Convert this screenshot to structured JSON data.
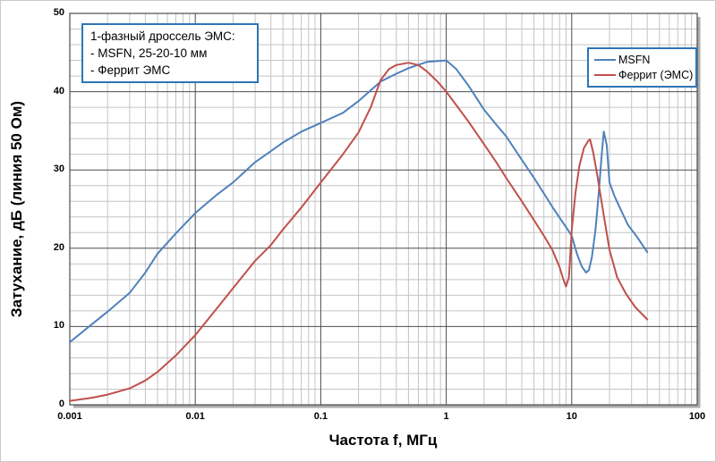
{
  "colors": {
    "accent_box_border": "#2e75b6",
    "major_grid": "#4d4d4d",
    "minor_grid": "#c4c4c4",
    "plot_border": "#4d4d4d",
    "plot_shadow": "#ababab",
    "text": "#000000"
  },
  "chart_data": {
    "type": "line",
    "title": "",
    "xlabel": "Частота f, МГц",
    "ylabel": "Затухание, дБ (линия 50 Ом)",
    "x_scale": "log",
    "xlim": [
      0.001,
      100
    ],
    "ylim": [
      0,
      50
    ],
    "y_minor_step": 2,
    "grid": true,
    "legend_position": "inside-top-right",
    "x_ticks": [
      {
        "value": 0.001,
        "label": "0.001"
      },
      {
        "value": 0.01,
        "label": "0.01"
      },
      {
        "value": 0.1,
        "label": "0.1"
      },
      {
        "value": 1,
        "label": "1"
      },
      {
        "value": 10,
        "label": "10"
      },
      {
        "value": 100,
        "label": "100"
      }
    ],
    "y_ticks": [
      0,
      10,
      20,
      30,
      40,
      50
    ],
    "annotation": {
      "lines": [
        "1-фазный дроссель ЭМС:",
        "- MSFN, 25-20-10 мм",
        "- Феррит ЭМС"
      ]
    },
    "series": [
      {
        "name": "MSFN",
        "color": "#4f81bd",
        "points": [
          [
            0.001,
            8.0
          ],
          [
            0.0015,
            10.3
          ],
          [
            0.002,
            11.9
          ],
          [
            0.003,
            14.3
          ],
          [
            0.004,
            16.9
          ],
          [
            0.005,
            19.3
          ],
          [
            0.007,
            21.9
          ],
          [
            0.01,
            24.5
          ],
          [
            0.015,
            26.9
          ],
          [
            0.02,
            28.4
          ],
          [
            0.03,
            31.0
          ],
          [
            0.04,
            32.4
          ],
          [
            0.05,
            33.5
          ],
          [
            0.07,
            34.9
          ],
          [
            0.1,
            36.0
          ],
          [
            0.15,
            37.3
          ],
          [
            0.2,
            38.8
          ],
          [
            0.3,
            41.3
          ],
          [
            0.4,
            42.3
          ],
          [
            0.5,
            43.0
          ],
          [
            0.7,
            43.8
          ],
          [
            1.0,
            44.0
          ],
          [
            1.2,
            42.9
          ],
          [
            1.5,
            40.8
          ],
          [
            2,
            37.7
          ],
          [
            2.5,
            35.8
          ],
          [
            3,
            34.3
          ],
          [
            4,
            31.3
          ],
          [
            5,
            29.0
          ],
          [
            6,
            27.0
          ],
          [
            7,
            25.3
          ],
          [
            8,
            23.9
          ],
          [
            9,
            22.7
          ],
          [
            10,
            21.6
          ],
          [
            11,
            19.3
          ],
          [
            12,
            17.7
          ],
          [
            13,
            16.9
          ],
          [
            13.7,
            17.2
          ],
          [
            14.5,
            18.9
          ],
          [
            15.5,
            22.5
          ],
          [
            16.5,
            27.5
          ],
          [
            17.3,
            31.8
          ],
          [
            18,
            34.9
          ],
          [
            19,
            33.2
          ],
          [
            20,
            28.4
          ],
          [
            22,
            26.6
          ],
          [
            24,
            25.3
          ],
          [
            28,
            23.0
          ],
          [
            33,
            21.5
          ],
          [
            40,
            19.5
          ]
        ]
      },
      {
        "name": "Феррит (ЭМС)",
        "color": "#c0504d",
        "points": [
          [
            0.001,
            0.5
          ],
          [
            0.0015,
            0.9
          ],
          [
            0.002,
            1.3
          ],
          [
            0.003,
            2.1
          ],
          [
            0.004,
            3.1
          ],
          [
            0.005,
            4.2
          ],
          [
            0.007,
            6.3
          ],
          [
            0.01,
            8.9
          ],
          [
            0.015,
            12.4
          ],
          [
            0.02,
            14.9
          ],
          [
            0.03,
            18.4
          ],
          [
            0.04,
            20.4
          ],
          [
            0.05,
            22.4
          ],
          [
            0.07,
            25.2
          ],
          [
            0.1,
            28.4
          ],
          [
            0.15,
            32.0
          ],
          [
            0.2,
            34.8
          ],
          [
            0.25,
            38.0
          ],
          [
            0.3,
            41.5
          ],
          [
            0.35,
            42.9
          ],
          [
            0.4,
            43.4
          ],
          [
            0.5,
            43.7
          ],
          [
            0.6,
            43.4
          ],
          [
            0.7,
            42.6
          ],
          [
            0.85,
            41.3
          ],
          [
            1.0,
            40.0
          ],
          [
            1.2,
            38.3
          ],
          [
            1.5,
            36.2
          ],
          [
            2,
            33.3
          ],
          [
            2.5,
            31.0
          ],
          [
            3,
            29.0
          ],
          [
            4,
            26.0
          ],
          [
            5,
            23.6
          ],
          [
            6,
            21.6
          ],
          [
            7,
            19.8
          ],
          [
            8,
            17.6
          ],
          [
            8.5,
            16.2
          ],
          [
            9,
            15.1
          ],
          [
            9.5,
            16.3
          ],
          [
            10,
            22.3
          ],
          [
            10.7,
            27.0
          ],
          [
            11.5,
            30.5
          ],
          [
            12.5,
            32.8
          ],
          [
            13.5,
            33.7
          ],
          [
            14,
            33.9
          ],
          [
            14.8,
            32.3
          ],
          [
            16,
            29.3
          ],
          [
            18,
            24.2
          ],
          [
            20,
            19.8
          ],
          [
            23,
            16.3
          ],
          [
            27,
            14.2
          ],
          [
            32,
            12.5
          ],
          [
            40,
            10.9
          ]
        ]
      }
    ]
  }
}
